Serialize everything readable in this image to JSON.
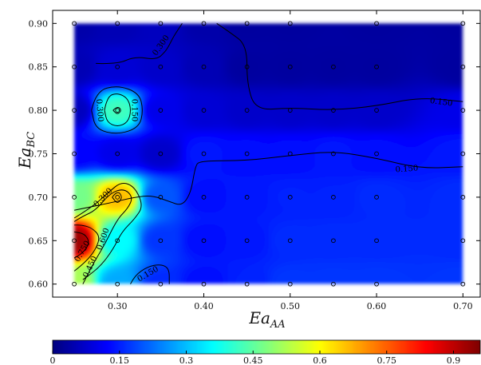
{
  "chart_data": {
    "type": "heatmap",
    "title": "",
    "xlabel": "Ea",
    "xlabel_sub": "AA",
    "ylabel": "Ea",
    "ylabel_sub": "BC",
    "xlim": [
      0.225,
      0.72
    ],
    "ylim": [
      0.585,
      0.915
    ],
    "data_extent": {
      "x": [
        0.25,
        0.7
      ],
      "y": [
        0.6,
        0.9
      ]
    },
    "x_ticks": [
      {
        "value": 0.3,
        "label": "0.30"
      },
      {
        "value": 0.4,
        "label": "0.40"
      },
      {
        "value": 0.5,
        "label": "0.50"
      },
      {
        "value": 0.6,
        "label": "0.60"
      },
      {
        "value": 0.7,
        "label": "0.70"
      }
    ],
    "y_ticks": [
      {
        "value": 0.6,
        "label": "0.60"
      },
      {
        "value": 0.65,
        "label": "0.65"
      },
      {
        "value": 0.7,
        "label": "0.70"
      },
      {
        "value": 0.75,
        "label": "0.75"
      },
      {
        "value": 0.8,
        "label": "0.80"
      },
      {
        "value": 0.85,
        "label": "0.85"
      },
      {
        "value": 0.9,
        "label": "0.90"
      }
    ],
    "colormap": "jet",
    "colorbar": {
      "range": [
        0,
        0.96
      ],
      "ticks": [
        {
          "value": 0,
          "label": "0"
        },
        {
          "value": 0.15,
          "label": "0.15"
        },
        {
          "value": 0.3,
          "label": "0.3"
        },
        {
          "value": 0.45,
          "label": "0.45"
        },
        {
          "value": 0.6,
          "label": "0.6"
        },
        {
          "value": 0.75,
          "label": "0.75"
        },
        {
          "value": 0.9,
          "label": "0.9"
        }
      ]
    },
    "samples": [
      [
        0.25,
        0.65,
        0.93
      ],
      [
        0.25,
        0.6,
        0.52
      ],
      [
        0.25,
        0.7,
        0.47
      ],
      [
        0.25,
        0.75,
        0.12
      ],
      [
        0.25,
        0.8,
        0.06
      ],
      [
        0.25,
        0.85,
        0.05
      ],
      [
        0.25,
        0.9,
        0.04
      ],
      [
        0.3,
        0.6,
        0.28
      ],
      [
        0.3,
        0.65,
        0.36
      ],
      [
        0.3,
        0.7,
        0.66
      ],
      [
        0.3,
        0.75,
        0.1
      ],
      [
        0.3,
        0.8,
        0.42
      ],
      [
        0.3,
        0.85,
        0.08
      ],
      [
        0.3,
        0.9,
        0.05
      ],
      [
        0.35,
        0.6,
        0.16
      ],
      [
        0.35,
        0.65,
        0.17
      ],
      [
        0.35,
        0.7,
        0.2
      ],
      [
        0.35,
        0.75,
        0.07
      ],
      [
        0.35,
        0.8,
        0.1
      ],
      [
        0.35,
        0.85,
        0.07
      ],
      [
        0.35,
        0.9,
        0.06
      ],
      [
        0.4,
        0.6,
        0.13
      ],
      [
        0.4,
        0.65,
        0.13
      ],
      [
        0.4,
        0.7,
        0.13
      ],
      [
        0.4,
        0.75,
        0.14
      ],
      [
        0.4,
        0.8,
        0.08
      ],
      [
        0.4,
        0.85,
        0.05
      ],
      [
        0.4,
        0.9,
        0.04
      ],
      [
        0.45,
        0.6,
        0.15
      ],
      [
        0.45,
        0.65,
        0.14
      ],
      [
        0.45,
        0.7,
        0.14
      ],
      [
        0.45,
        0.75,
        0.13
      ],
      [
        0.45,
        0.8,
        0.07
      ],
      [
        0.45,
        0.85,
        0.03
      ],
      [
        0.45,
        0.9,
        0.03
      ],
      [
        0.5,
        0.6,
        0.17
      ],
      [
        0.5,
        0.65,
        0.16
      ],
      [
        0.5,
        0.7,
        0.15
      ],
      [
        0.5,
        0.75,
        0.13
      ],
      [
        0.5,
        0.8,
        0.07
      ],
      [
        0.5,
        0.85,
        0.03
      ],
      [
        0.5,
        0.9,
        0.03
      ],
      [
        0.55,
        0.6,
        0.17
      ],
      [
        0.55,
        0.65,
        0.16
      ],
      [
        0.55,
        0.7,
        0.15
      ],
      [
        0.55,
        0.75,
        0.14
      ],
      [
        0.55,
        0.8,
        0.07
      ],
      [
        0.55,
        0.85,
        0.03
      ],
      [
        0.6,
        0.6,
        0.17
      ],
      [
        0.6,
        0.65,
        0.16
      ],
      [
        0.6,
        0.7,
        0.16
      ],
      [
        0.6,
        0.75,
        0.13
      ],
      [
        0.6,
        0.8,
        0.07
      ],
      [
        0.6,
        0.85,
        0.03
      ],
      [
        0.6,
        0.9,
        0.03
      ],
      [
        0.7,
        0.6,
        0.17
      ],
      [
        0.7,
        0.65,
        0.16
      ],
      [
        0.7,
        0.7,
        0.16
      ],
      [
        0.7,
        0.75,
        0.14
      ],
      [
        0.7,
        0.8,
        0.1
      ],
      [
        0.7,
        0.85,
        0.03
      ],
      [
        0.7,
        0.9,
        0.03
      ]
    ],
    "contour_lines": [
      {
        "level": "0.150",
        "points": [
          [
            0.25,
            0.685
          ],
          [
            0.29,
            0.693
          ],
          [
            0.32,
            0.7
          ],
          [
            0.34,
            0.702
          ],
          [
            0.36,
            0.695
          ],
          [
            0.375,
            0.69
          ],
          [
            0.385,
            0.705
          ],
          [
            0.39,
            0.735
          ],
          [
            0.395,
            0.742
          ],
          [
            0.45,
            0.742
          ],
          [
            0.5,
            0.748
          ],
          [
            0.55,
            0.753
          ],
          [
            0.6,
            0.745
          ],
          [
            0.65,
            0.733
          ],
          [
            0.7,
            0.735
          ]
        ]
      },
      {
        "level": "0.150",
        "points": [
          [
            0.275,
            0.854
          ],
          [
            0.3,
            0.853
          ],
          [
            0.32,
            0.862
          ],
          [
            0.345,
            0.858
          ],
          [
            0.355,
            0.867
          ],
          [
            0.36,
            0.875
          ],
          [
            0.365,
            0.885
          ],
          [
            0.375,
            0.9
          ]
        ]
      },
      {
        "level": "0.150",
        "points": [
          [
            0.27,
            0.8
          ],
          [
            0.275,
            0.822
          ],
          [
            0.3,
            0.829
          ],
          [
            0.325,
            0.82
          ],
          [
            0.33,
            0.8
          ],
          [
            0.325,
            0.78
          ],
          [
            0.3,
            0.772
          ],
          [
            0.275,
            0.778
          ],
          [
            0.27,
            0.8
          ]
        ]
      },
      {
        "level": "0.150",
        "points": [
          [
            0.315,
            0.6
          ],
          [
            0.32,
            0.61
          ],
          [
            0.335,
            0.62
          ],
          [
            0.35,
            0.623
          ],
          [
            0.36,
            0.618
          ],
          [
            0.36,
            0.6
          ]
        ]
      },
      {
        "level": "0.150",
        "points": [
          [
            0.415,
            0.9
          ],
          [
            0.43,
            0.89
          ],
          [
            0.45,
            0.875
          ],
          [
            0.45,
            0.83
          ],
          [
            0.46,
            0.8
          ],
          [
            0.5,
            0.803
          ],
          [
            0.55,
            0.8
          ],
          [
            0.6,
            0.805
          ],
          [
            0.65,
            0.815
          ],
          [
            0.7,
            0.81
          ]
        ]
      },
      {
        "level": "0.300",
        "points": [
          [
            0.25,
            0.676
          ],
          [
            0.27,
            0.688
          ],
          [
            0.29,
            0.706
          ],
          [
            0.305,
            0.718
          ],
          [
            0.32,
            0.712
          ],
          [
            0.33,
            0.69
          ],
          [
            0.32,
            0.675
          ],
          [
            0.305,
            0.66
          ],
          [
            0.295,
            0.64
          ],
          [
            0.28,
            0.62
          ],
          [
            0.26,
            0.605
          ]
        ]
      },
      {
        "level": "0.300",
        "points": [
          [
            0.285,
            0.8
          ],
          [
            0.288,
            0.816
          ],
          [
            0.3,
            0.82
          ],
          [
            0.312,
            0.814
          ],
          [
            0.316,
            0.8
          ],
          [
            0.312,
            0.786
          ],
          [
            0.3,
            0.781
          ],
          [
            0.288,
            0.786
          ],
          [
            0.285,
            0.8
          ]
        ]
      },
      {
        "level": "0.450",
        "points": [
          [
            0.26,
            0.6
          ],
          [
            0.27,
            0.62
          ],
          [
            0.285,
            0.645
          ],
          [
            0.3,
            0.675
          ],
          [
            0.312,
            0.687
          ],
          [
            0.318,
            0.7
          ],
          [
            0.308,
            0.71
          ],
          [
            0.292,
            0.705
          ],
          [
            0.275,
            0.685
          ],
          [
            0.26,
            0.678
          ],
          [
            0.25,
            0.672
          ]
        ]
      },
      {
        "level": "0.600",
        "points": [
          [
            0.25,
            0.615
          ],
          [
            0.263,
            0.625
          ],
          [
            0.275,
            0.64
          ],
          [
            0.28,
            0.655
          ],
          [
            0.27,
            0.665
          ],
          [
            0.258,
            0.668
          ],
          [
            0.25,
            0.668
          ]
        ]
      },
      {
        "level": "0.600",
        "points": [
          [
            0.294,
            0.7
          ],
          [
            0.3,
            0.708
          ],
          [
            0.306,
            0.7
          ],
          [
            0.3,
            0.692
          ],
          [
            0.294,
            0.7
          ]
        ]
      },
      {
        "level": "0.750",
        "points": [
          [
            0.25,
            0.63
          ],
          [
            0.26,
            0.635
          ],
          [
            0.268,
            0.648
          ],
          [
            0.262,
            0.658
          ],
          [
            0.25,
            0.66
          ]
        ]
      },
      {
        "level": "0.750",
        "points": [
          [
            0.295,
            0.8
          ],
          [
            0.3,
            0.805
          ],
          [
            0.305,
            0.8
          ],
          [
            0.3,
            0.795
          ],
          [
            0.295,
            0.8
          ]
        ]
      }
    ],
    "contour_labels": [
      {
        "text": "0.150",
        "x": 0.635,
        "y": 0.733,
        "angle": -4
      },
      {
        "text": "0.150",
        "x": 0.675,
        "y": 0.81,
        "angle": 8
      },
      {
        "text": "0.150",
        "x": 0.32,
        "y": 0.8,
        "angle": 90
      },
      {
        "text": "0.150",
        "x": 0.335,
        "y": 0.612,
        "angle": -30
      },
      {
        "text": "0.300",
        "x": 0.35,
        "y": 0.875,
        "angle": -55
      },
      {
        "text": "0.300",
        "x": 0.28,
        "y": 0.8,
        "angle": 85
      },
      {
        "text": "0.300",
        "x": 0.283,
        "y": 0.7,
        "angle": -45
      },
      {
        "text": "0.450",
        "x": 0.268,
        "y": 0.62,
        "angle": -65
      },
      {
        "text": "0.600",
        "x": 0.283,
        "y": 0.652,
        "angle": -70
      },
      {
        "text": "0.750",
        "x": 0.259,
        "y": 0.638,
        "angle": -60
      }
    ]
  }
}
